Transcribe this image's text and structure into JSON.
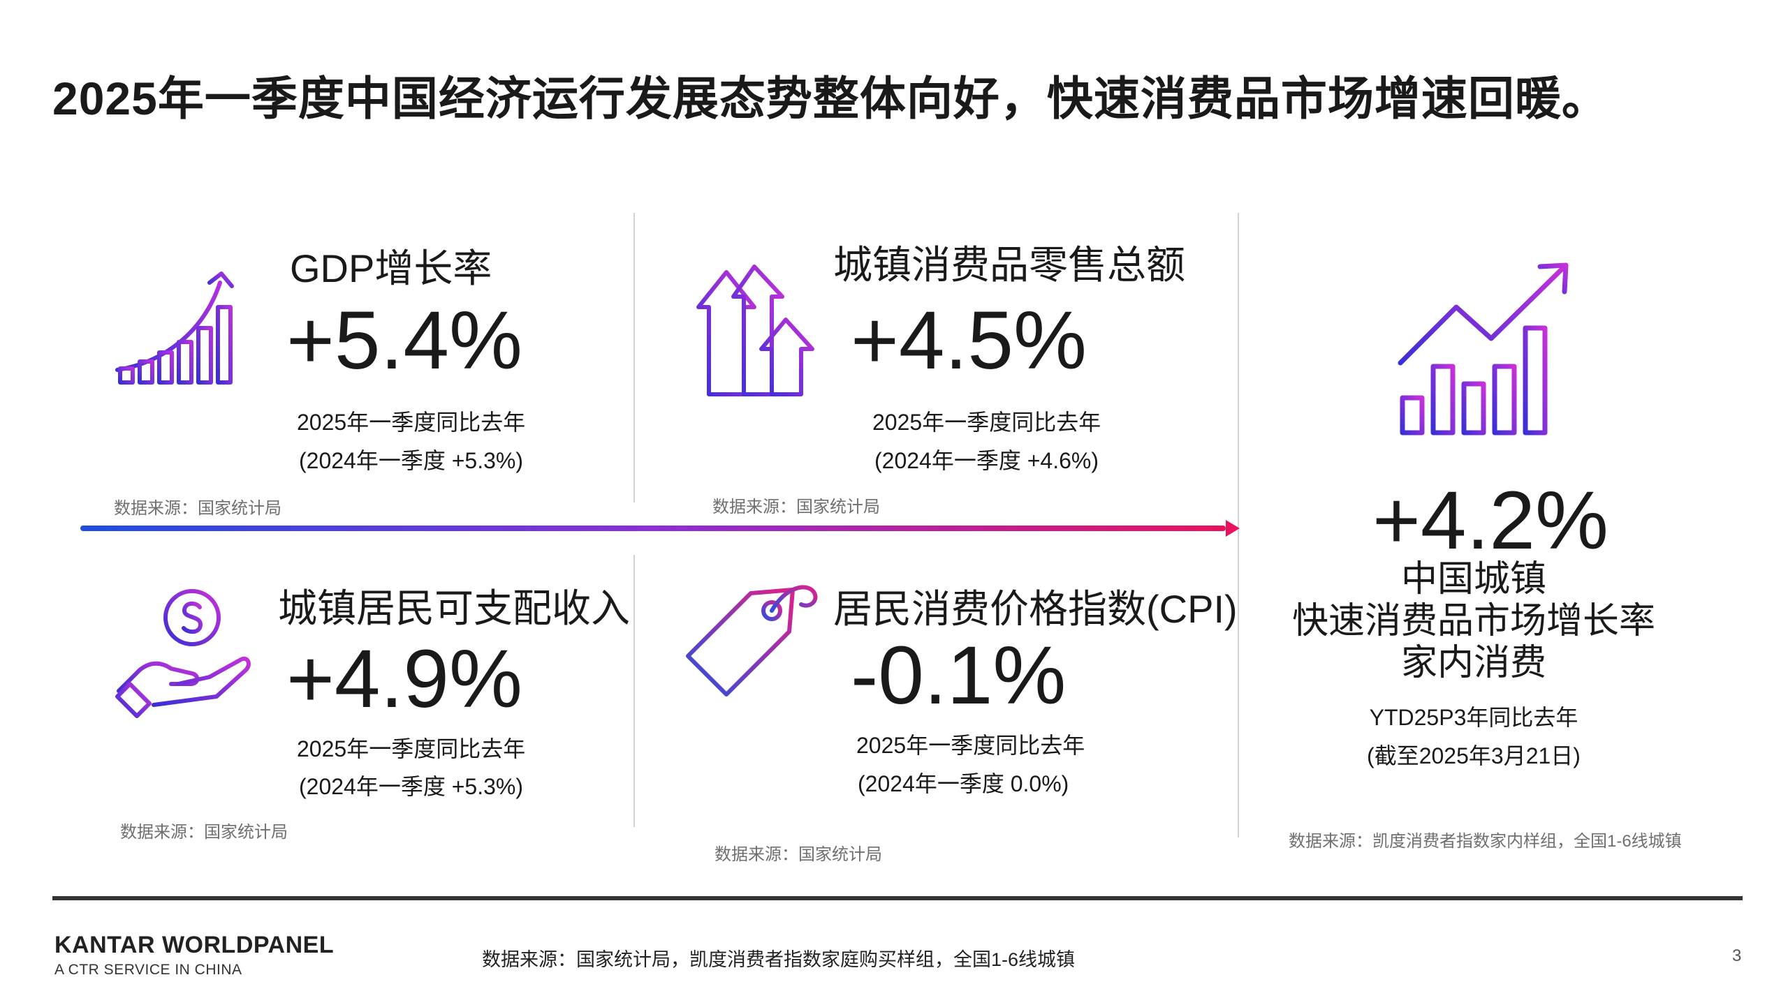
{
  "title": "2025年一季度中国经济运行发展态势整体向好，快速消费品市场增速回暖。",
  "colors": {
    "gradient_start": "#1e4de0",
    "gradient_mid": "#8b2fd6",
    "gradient_end": "#e8125f",
    "text": "#1a1a1a",
    "source": "#6f6f6f"
  },
  "metrics": {
    "gdp": {
      "icon": "growth-chart-icon",
      "label": "GDP增长率",
      "value": "+5.4%",
      "period": "2025年一季度同比去年",
      "previous": "(2024年一季度 +5.3%)",
      "source": "数据来源：国家统计局"
    },
    "retail": {
      "icon": "up-arrows-icon",
      "label": "城镇消费品零售总额",
      "value": "+4.5%",
      "period": "2025年一季度同比去年",
      "previous": "(2024年一季度 +4.6%)",
      "source": "数据来源：国家统计局"
    },
    "income": {
      "icon": "hand-coin-icon",
      "label": "城镇居民可支配收入",
      "value": "+4.9%",
      "period": "2025年一季度同比去年",
      "previous": "(2024年一季度 +5.3%)",
      "source": "数据来源：国家统计局"
    },
    "cpi": {
      "icon": "price-tag-icon",
      "label": "居民消费价格指数(CPI)",
      "value": "-0.1%",
      "period": "2025年一季度同比去年",
      "previous": "(2024年一季度 0.0%)",
      "source": "数据来源：国家统计局"
    },
    "fmcg": {
      "icon": "bar-trend-icon",
      "value": "+4.2%",
      "label_lines": [
        "中国城镇",
        "快速消费品市场增长率",
        "家内消费"
      ],
      "period": "YTD25P3年同比去年",
      "previous": "(截至2025年3月21日)",
      "source": "数据来源：凯度消费者指数家内样组，全国1-6线城镇"
    }
  },
  "footer": {
    "brand": "KANTAR WORLDPANEL",
    "brand_sub": "A CTR SERVICE IN CHINA",
    "source": "数据来源：国家统计局，凯度消费者指数家庭购买样组，全国1-6线城镇",
    "page_number": "3"
  }
}
